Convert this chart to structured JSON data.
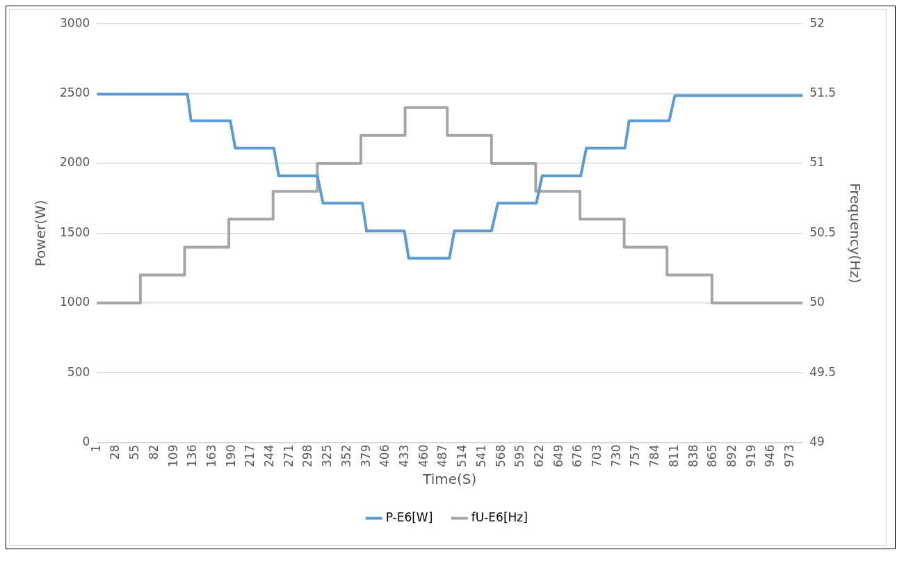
{
  "chart_data": {
    "type": "line",
    "xlabel": "Time(S)",
    "ylabel": "Power(W)",
    "y2label": "Frequency(Hz)",
    "xlim": [
      1,
      990
    ],
    "xticks": [
      1,
      28,
      55,
      82,
      109,
      136,
      163,
      190,
      217,
      244,
      271,
      298,
      325,
      352,
      379,
      406,
      433,
      460,
      487,
      514,
      541,
      568,
      595,
      622,
      649,
      676,
      703,
      730,
      757,
      784,
      811,
      838,
      865,
      892,
      919,
      946,
      973
    ],
    "ylim": [
      0,
      3000
    ],
    "yticks": [
      0,
      500,
      1000,
      1500,
      2000,
      2500,
      3000
    ],
    "y2lim": [
      49,
      52
    ],
    "y2ticks": [
      49,
      49.5,
      50,
      50.5,
      51,
      51.5,
      52
    ],
    "grid": "y",
    "legend": "bottom",
    "series": [
      {
        "name": "P-E6[W]",
        "color": "#5b9bd5",
        "x": [
          1,
          128,
          133,
          188,
          195,
          249,
          256,
          310,
          318,
          373,
          379,
          432,
          438,
          495,
          502,
          554,
          563,
          617,
          625,
          679,
          687,
          741,
          747,
          803,
          811,
          990
        ],
        "values": [
          2495,
          2495,
          2305,
          2305,
          2110,
          2110,
          1910,
          1910,
          1715,
          1715,
          1515,
          1515,
          1320,
          1320,
          1515,
          1515,
          1715,
          1715,
          1910,
          1910,
          2110,
          2110,
          2305,
          2305,
          2485,
          2485
        ]
      },
      {
        "name": "fU-E6[Hz]",
        "color": "#a5a5a5",
        "axis": "y2",
        "x": [
          1,
          62,
          62,
          124,
          124,
          186,
          186,
          248,
          248,
          310,
          310,
          371,
          371,
          433,
          433,
          492,
          492,
          554,
          554,
          616,
          616,
          678,
          678,
          740,
          740,
          800,
          800,
          863,
          863,
          990
        ],
        "values": [
          50,
          50,
          50.2,
          50.2,
          50.4,
          50.4,
          50.6,
          50.6,
          50.8,
          50.8,
          51,
          51,
          51.2,
          51.2,
          51.4,
          51.4,
          51.2,
          51.2,
          51,
          51,
          50.8,
          50.8,
          50.6,
          50.6,
          50.4,
          50.4,
          50.2,
          50.2,
          50,
          50
        ]
      }
    ]
  }
}
